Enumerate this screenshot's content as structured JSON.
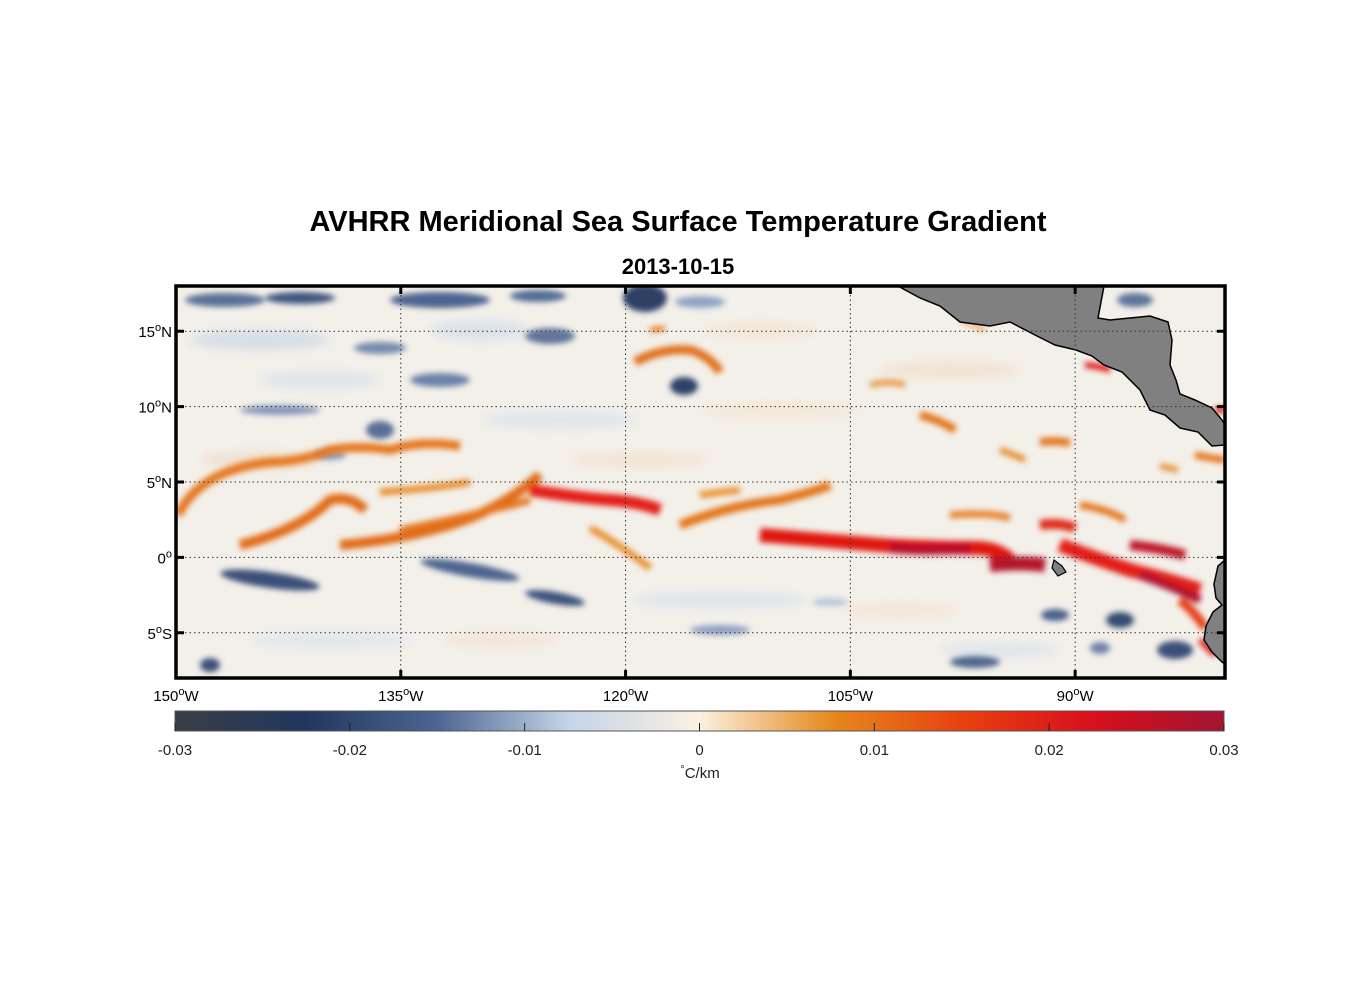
{
  "title": "AVHRR Meridional Sea Surface Temperature Gradient",
  "subtitle": "2013-10-15",
  "map": {
    "projection": "equirectangular",
    "lon_range": [
      -150,
      -80
    ],
    "lat_range": [
      -8,
      18
    ],
    "grid": "dotted",
    "land_color": "#808080",
    "lat_ticks": [
      {
        "value": 15,
        "num": "15",
        "hemi": "N"
      },
      {
        "value": 10,
        "num": "10",
        "hemi": "N"
      },
      {
        "value": 5,
        "num": "5",
        "hemi": "N"
      },
      {
        "value": 0,
        "num": "0",
        "hemi": ""
      },
      {
        "value": -5,
        "num": "5",
        "hemi": "S"
      }
    ],
    "lon_ticks": [
      {
        "value": -150,
        "num": "150",
        "hemi": "W"
      },
      {
        "value": -135,
        "num": "135",
        "hemi": "W"
      },
      {
        "value": -120,
        "num": "120",
        "hemi": "W"
      },
      {
        "value": -105,
        "num": "105",
        "hemi": "W"
      },
      {
        "value": -90,
        "num": "90",
        "hemi": "W"
      }
    ]
  },
  "colorbar": {
    "range": [
      -0.03,
      0.03
    ],
    "ticks": [
      "-0.03",
      "-0.02",
      "-0.01",
      "0",
      "0.01",
      "0.02",
      "0.03"
    ],
    "label_deg": "°",
    "label_unit": "C/km",
    "colors": [
      "#3a3c44",
      "#21375e",
      "#4d6591",
      "#c4d4e8",
      "#fbf1e1",
      "#e58a1e",
      "#e8410f",
      "#d80f1c",
      "#a31432"
    ]
  }
}
